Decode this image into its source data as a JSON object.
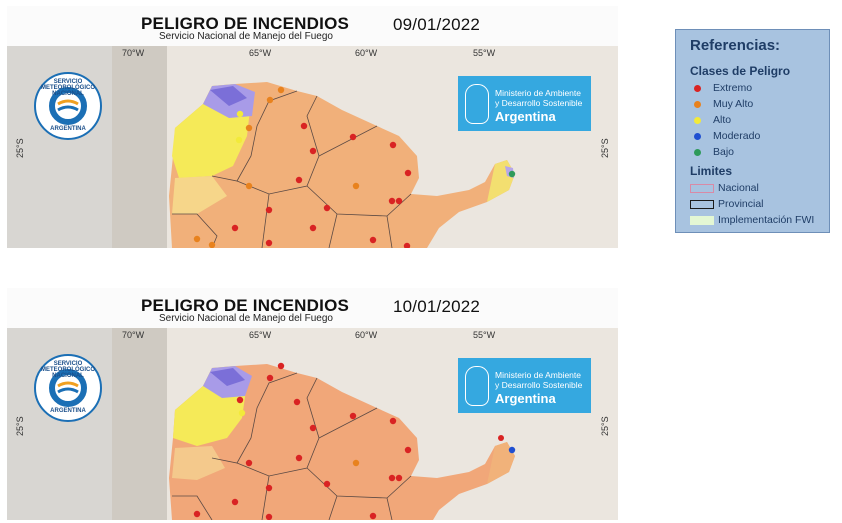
{
  "maps": [
    {
      "title": "PELIGRO DE INCENDIOS",
      "subtitle": "Servicio Nacional de Manejo del Fuego",
      "date": "09/01/2022",
      "lon_labels": [
        "70°W",
        "65°W",
        "60°W",
        "55°W"
      ],
      "lat_label": "25°S"
    },
    {
      "title": "PELIGRO DE INCENDIOS",
      "subtitle": "Servicio Nacional de Manejo del Fuego",
      "date": "10/01/2022",
      "lon_labels": [
        "70°W",
        "65°W",
        "60°W",
        "55°W"
      ],
      "lat_label": "25°S"
    }
  ],
  "logos": {
    "smn_ring_top": "SERVICIO METEOROLÓGICO NACIONAL",
    "smn_ring_bottom": "ARGENTINA",
    "ministry_line1": "Ministerio de Ambiente",
    "ministry_line2": "y Desarrollo Sostenible",
    "ministry_country": "Argentina"
  },
  "legend": {
    "title": "Referencias:",
    "classes_title": "Clases de Peligro",
    "classes": [
      {
        "label": "Extremo",
        "color": "#d92323"
      },
      {
        "label": "Muy Alto",
        "color": "#e8821e"
      },
      {
        "label": "Alto",
        "color": "#f2ea3a"
      },
      {
        "label": "Moderado",
        "color": "#1f4fd1"
      },
      {
        "label": "Bajo",
        "color": "#2e9a5a"
      }
    ],
    "limits_title": "Limites",
    "limits": [
      {
        "label": "Nacional",
        "style": "pink-outline"
      },
      {
        "label": "Provincial",
        "style": "dark-outline"
      },
      {
        "label": "Implementación FWI",
        "style": "light-green-fill"
      }
    ]
  }
}
